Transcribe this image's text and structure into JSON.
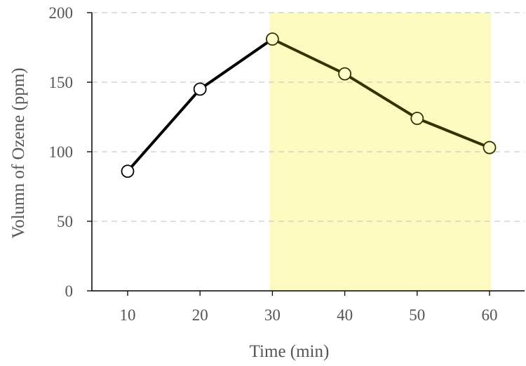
{
  "chart_data": {
    "type": "line",
    "x": [
      10,
      20,
      30,
      40,
      50,
      60
    ],
    "series": [
      {
        "values": [
          86,
          145,
          181,
          156,
          124,
          103
        ]
      }
    ],
    "xlabel": "Time (min)",
    "ylabel": "Volumn of Ozene (ppm)",
    "ylim": [
      0,
      200
    ],
    "y_ticks": [
      0,
      50,
      100,
      150,
      200
    ],
    "x_ticks": [
      10,
      20,
      30,
      40,
      50,
      60
    ],
    "grid": "horizontal dashed",
    "highlight_region": {
      "x_from": 30,
      "x_to": 60,
      "color": "#fdfbbf"
    },
    "colors": {
      "line": "#000000",
      "line_in_highlight": "#333300",
      "marker_fill": "#ffffff",
      "marker_fill_in_highlight": "#ffffcc",
      "grid": "#cccccc",
      "axis": "#000000"
    }
  }
}
